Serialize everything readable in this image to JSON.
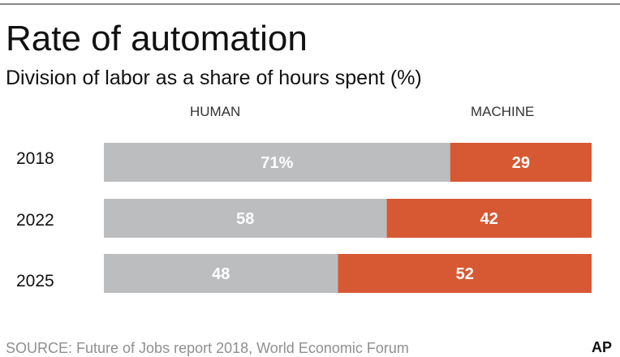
{
  "colors": {
    "human": "#bcbdbf",
    "machine": "#d75934",
    "label_text": "#ffffff",
    "rule": "#8a8a8a"
  },
  "title": "Rate of automation",
  "subtitle": "Division of labor as a share of hours spent (%)",
  "source": "SOURCE: Future of Jobs report 2018, World Economic Forum",
  "logo_text": "AP",
  "chart_data": {
    "type": "bar",
    "orientation": "horizontal",
    "stacked": true,
    "categories": [
      "2018",
      "2022",
      "2025"
    ],
    "series": [
      {
        "name": "HUMAN",
        "values": [
          71,
          58,
          48
        ],
        "labels": [
          "71%",
          "58",
          "48"
        ]
      },
      {
        "name": "MACHINE",
        "values": [
          29,
          42,
          52
        ],
        "labels": [
          "29",
          "42",
          "52"
        ]
      }
    ],
    "xlim": [
      0,
      100
    ],
    "grid": false,
    "legend": "top"
  }
}
